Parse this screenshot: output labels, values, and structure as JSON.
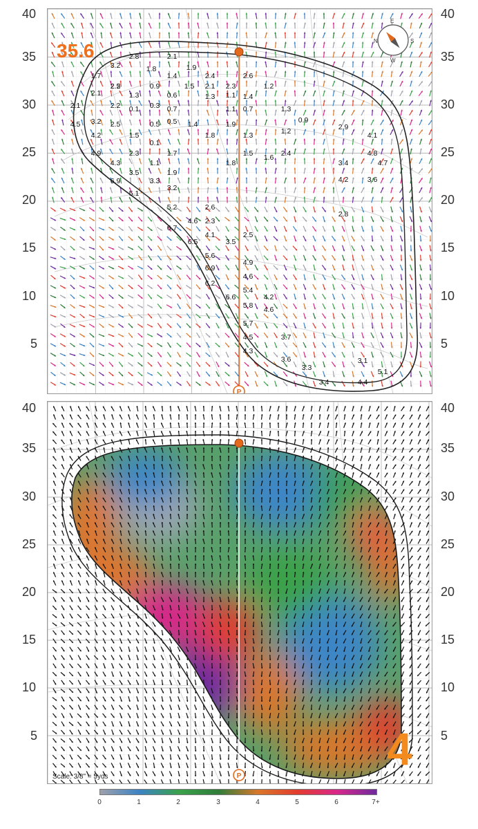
{
  "top_panel": {
    "yardage": "35.6",
    "y_ticks": [
      "40",
      "35",
      "30",
      "25",
      "20",
      "15",
      "10",
      "5"
    ],
    "slope_labels": [
      "3.2",
      "2.8",
      "2.1",
      "1.9",
      "1.7",
      "2.2",
      "1.8",
      "1.4",
      "2.4",
      "2.6",
      "2.5",
      "0.9",
      "1.5",
      "2.1",
      "2.3",
      "1.2",
      "2.1",
      "1.3",
      "0.6",
      "1.1",
      "1.4",
      "0.1",
      "0.7",
      "2.1",
      "2.2",
      "0.3",
      "0.5",
      "1.3",
      "1.1",
      "0.7",
      "1.3",
      "3.2",
      "0.1",
      "1.6",
      "1.2",
      "0.9",
      "4.5",
      "2.5",
      "0.5",
      "1.4",
      "1.9",
      "2.9",
      "4.2",
      "1.5",
      "1.8",
      "1.3",
      "4.1",
      "4.9",
      "2.3",
      "1.7",
      "1.5",
      "2.4",
      "4.8",
      "4.3",
      "1.1",
      "1.8",
      "3.4",
      "4.7",
      "6.9",
      "3.5",
      "1.9",
      "4.2",
      "5.1",
      "3.3",
      "3.2",
      "3.6",
      "5.2",
      "2.6",
      "2.8",
      "6.7",
      "4.6",
      "2.3",
      "6.5",
      "4.1",
      "2.5",
      "5.6",
      "3.5",
      "6.9",
      "4.9",
      "6.2",
      "4.6",
      "6.6",
      "5.4",
      "5.8",
      "4.2",
      "4.6",
      "5.7",
      "4.5",
      "3.7",
      "4.3",
      "3.6",
      "3.3",
      "3.4",
      "4.4",
      "5.1",
      "3.1"
    ],
    "compass_letters": [
      "N",
      "E",
      "S",
      "W"
    ]
  },
  "bottom_panel": {
    "y_ticks": [
      "40",
      "35",
      "30",
      "25",
      "20",
      "15",
      "10",
      "5"
    ],
    "hole_number": "4",
    "scale_note": "Scale: 3/8\" = 5yds"
  },
  "legend": {
    "ticks": [
      "0",
      "1",
      "2",
      "3",
      "4",
      "5",
      "6",
      "7+"
    ],
    "colors": [
      "#9ea1ab",
      "#3b83c4",
      "#3aa14a",
      "#2f7d3a",
      "#d9772a",
      "#e23c2e",
      "#d8278a",
      "#6e2a9e"
    ]
  },
  "colors": {
    "accent_orange": "#ef6f1d",
    "pin_orange": "#e36a1c",
    "line_orange": "#d86a2a",
    "contour_gray": "#bfbfbf"
  }
}
